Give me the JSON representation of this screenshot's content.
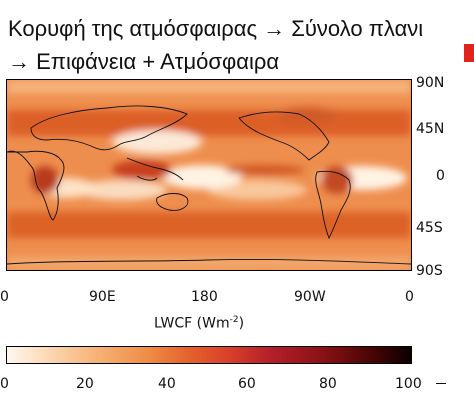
{
  "header": {
    "line1": "Κορυφή της ατμόσφαιρας → Σύνολο πλανι",
    "line2": "→  Επιφάνεια + Ατμόσφαιρα"
  },
  "map": {
    "lat_labels": [
      "90N",
      "45N",
      "0",
      "45S",
      "90S"
    ],
    "lon_labels": [
      "0",
      "90E",
      "180",
      "90W",
      "0"
    ],
    "axis_title_main": "LWCF (Wm",
    "axis_title_exp": "-2",
    "axis_title_close": ")"
  },
  "colorbar": {
    "ticks": [
      "0",
      "20",
      "40",
      "60",
      "80",
      "100"
    ],
    "dash": "–"
  },
  "colors": {
    "accent": "#e0231d",
    "map_low": "#fff4e6",
    "map_mid": "#ee8c45",
    "map_high": "#c83a1c"
  }
}
